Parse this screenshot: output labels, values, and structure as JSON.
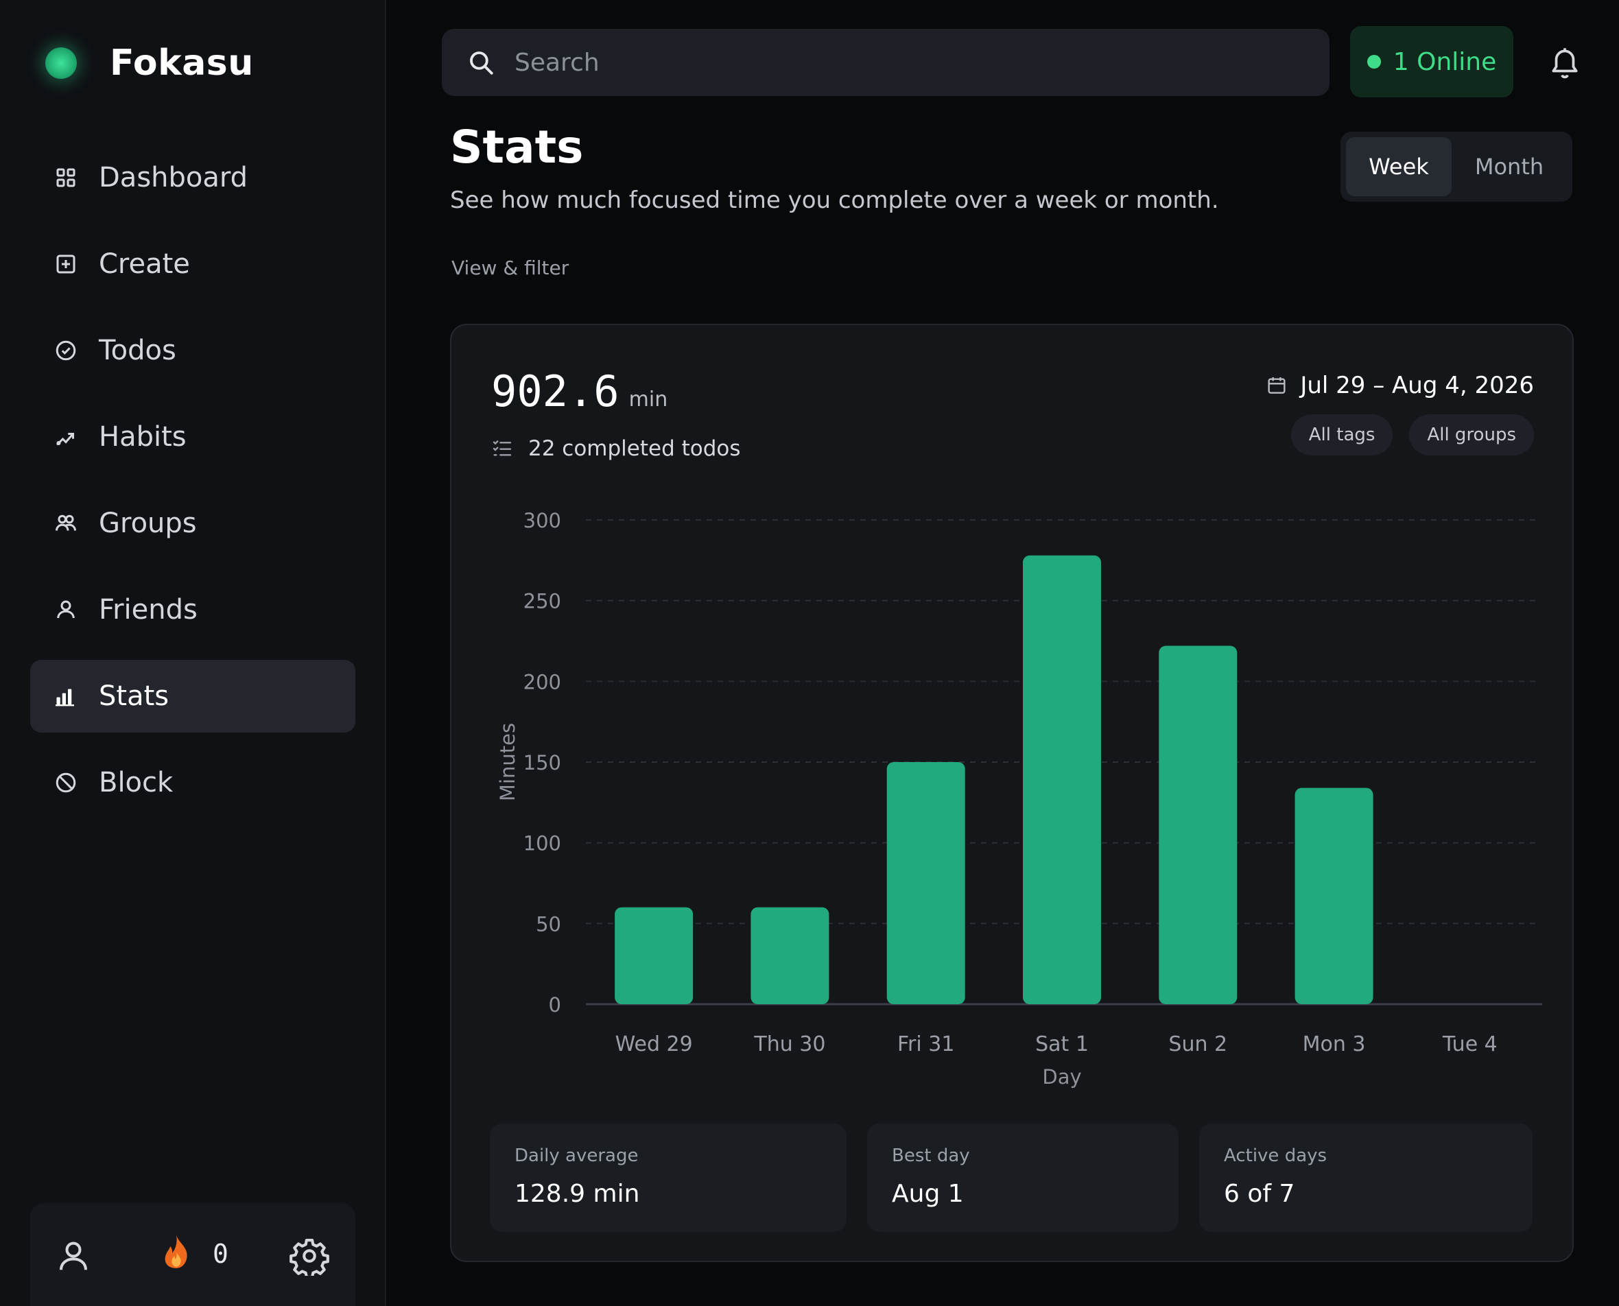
{
  "app": {
    "name": "Fokasu"
  },
  "sidebar": {
    "items": [
      {
        "label": "Dashboard",
        "icon": "grid-icon"
      },
      {
        "label": "Create",
        "icon": "plus-square-icon"
      },
      {
        "label": "Todos",
        "icon": "check-circle-icon"
      },
      {
        "label": "Habits",
        "icon": "trend-icon"
      },
      {
        "label": "Groups",
        "icon": "users-icon"
      },
      {
        "label": "Friends",
        "icon": "user-icon"
      },
      {
        "label": "Stats",
        "icon": "bar-chart-icon",
        "active": true
      },
      {
        "label": "Block",
        "icon": "ban-icon"
      }
    ],
    "footer": {
      "streak_count": "0"
    }
  },
  "topbar": {
    "search_placeholder": "Search",
    "online_label": "1 Online"
  },
  "header": {
    "title": "Stats",
    "subtitle": "See how much focused time you complete over a week or month.",
    "filter_label": "View & filter",
    "period_options": [
      "Week",
      "Month"
    ],
    "selected_period": "Week"
  },
  "card": {
    "total_value": "902.6",
    "total_unit": "min",
    "completed_todos": "22 completed todos",
    "date_range": "Jul 29 – Aug 4, 2026",
    "filters": [
      "All tags",
      "All groups"
    ],
    "summary": [
      {
        "label": "Daily average",
        "value": "128.9 min"
      },
      {
        "label": "Best day",
        "value": "Aug 1"
      },
      {
        "label": "Active days",
        "value": "6 of 7"
      }
    ]
  },
  "colors": {
    "accent": "#22a97e",
    "online": "#3fdc8a",
    "background": "#08090b"
  },
  "chart_data": {
    "type": "bar",
    "categories": [
      "Wed 29",
      "Thu 30",
      "Fri 31",
      "Sat 1",
      "Sun 2",
      "Mon 3",
      "Tue 4"
    ],
    "values": [
      60,
      60,
      150,
      278,
      222,
      134,
      0
    ],
    "xlabel": "Day",
    "ylabel": "Minutes",
    "ylim": [
      0,
      300
    ],
    "yticks": [
      0,
      50,
      100,
      150,
      200,
      250,
      300
    ],
    "grid": true,
    "color": "#22a97e"
  }
}
